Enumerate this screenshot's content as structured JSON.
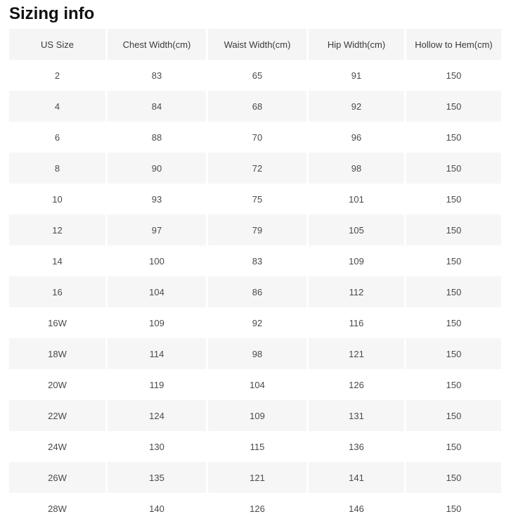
{
  "page": {
    "title": "Sizing info"
  },
  "table": {
    "columns": [
      "US Size",
      "Chest Width(cm)",
      "Waist Width(cm)",
      "Hip Width(cm)",
      "Hollow to Hem(cm)"
    ],
    "rows": [
      [
        "2",
        "83",
        "65",
        "91",
        "150"
      ],
      [
        "4",
        "84",
        "68",
        "92",
        "150"
      ],
      [
        "6",
        "88",
        "70",
        "96",
        "150"
      ],
      [
        "8",
        "90",
        "72",
        "98",
        "150"
      ],
      [
        "10",
        "93",
        "75",
        "101",
        "150"
      ],
      [
        "12",
        "97",
        "79",
        "105",
        "150"
      ],
      [
        "14",
        "100",
        "83",
        "109",
        "150"
      ],
      [
        "16",
        "104",
        "86",
        "112",
        "150"
      ],
      [
        "16W",
        "109",
        "92",
        "116",
        "150"
      ],
      [
        "18W",
        "114",
        "98",
        "121",
        "150"
      ],
      [
        "20W",
        "119",
        "104",
        "126",
        "150"
      ],
      [
        "22W",
        "124",
        "109",
        "131",
        "150"
      ],
      [
        "24W",
        "130",
        "115",
        "136",
        "150"
      ],
      [
        "26W",
        "135",
        "121",
        "141",
        "150"
      ],
      [
        "28W",
        "140",
        "126",
        "146",
        "150"
      ]
    ]
  },
  "colors": {
    "header_bg": "#f5f5f5",
    "alt_row_bg": "#f6f6f6",
    "cell_text": "#4a4a4a",
    "header_text": "#3a3a3a",
    "title_text": "#111111",
    "page_bg": "#ffffff"
  }
}
